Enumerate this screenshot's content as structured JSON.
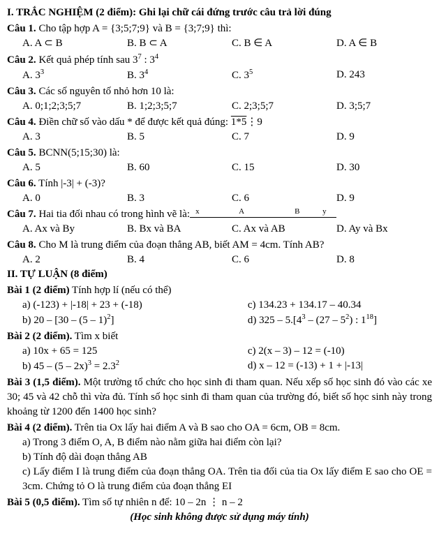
{
  "partI": {
    "title": "I. TRẮC NGHIỆM (2 điểm): Ghi lại chữ cái đứng trước câu trả lời đúng",
    "questions": [
      {
        "label": "Câu 1.",
        "text": " Cho tập hợp A = {3;5;7;9} và B = {3;7;9} thì:",
        "opts": [
          "A. A ⊂ B",
          "B. B ⊂ A",
          "C. B ∈ A",
          "D. A ∈ B"
        ]
      },
      {
        "label": "Câu 2.",
        "text_html": " Kết quả phép tính sau 3<sup>7</sup> : 3<sup>4</sup>",
        "opts_html": [
          "A. 3<sup>3</sup>",
          "B. 3<sup>4</sup>",
          "C. 3<sup>5</sup>",
          "D. 243"
        ]
      },
      {
        "label": "Câu 3.",
        "text": " Các số nguyên tố nhỏ hơn 10 là:",
        "opts": [
          "A. 0;1;2;3;5;7",
          "B. 1;2;3;5;7",
          "C. 2;3;5;7",
          "D. 3;5;7"
        ]
      },
      {
        "label": "Câu 4.",
        "text_html": " Điền chữ số vào dấu * để được kết quả đúng: <span class=\"overline\">1*5</span>⋮9",
        "opts": [
          "A. 3",
          "B. 5",
          "C. 7",
          "D. 9"
        ]
      },
      {
        "label": "Câu 5.",
        "text": " BCNN(5;15;30) là:",
        "opts": [
          "A. 5",
          "B. 60",
          "C. 15",
          "D. 30"
        ]
      },
      {
        "label": "Câu 6.",
        "text": " Tính |-3| + (-3)?",
        "opts": [
          "A. 0",
          "B. 3",
          "C. 6",
          "D. 9"
        ]
      },
      {
        "label": "Câu 7.",
        "text": " Hai tia đối nhau có trong hình vẽ là:",
        "diagram_labels": {
          "x": "x",
          "A": "A",
          "B": "B",
          "y": "y"
        },
        "opts": [
          "A. Ax và By",
          "B. Bx và BA",
          "C. Ax và AB",
          "D. Ay và Bx"
        ]
      },
      {
        "label": "Câu 8.",
        "text": " Cho M là trung điểm của đoạn thẳng AB, biết AM = 4cm. Tính AB?",
        "opts": [
          "A. 2",
          "B. 4",
          "C. 6",
          "D. 8"
        ]
      }
    ]
  },
  "partII": {
    "title": "II. TỰ LUẬN (8 điểm)",
    "b1": {
      "head": "Bài 1 (2 điểm)",
      "text": " Tính hợp lí (nếu có thể)",
      "a": "a)  (-123) + |-18| + 23 + (-18)",
      "c": "c)  134.23 + 134.17 – 40.34",
      "b_html": "b)  20 – [30 – (5 – 1)<sup>2</sup>]",
      "d_html": "d)  325 – 5.[4<sup>3</sup> – (27 – 5<sup>2</sup>) : 1<sup>18</sup>]"
    },
    "b2": {
      "head": "Bài 2 (2 điểm).",
      "text": " Tìm x biết",
      "a": "a)  10x + 65 = 125",
      "c": "c)  2(x – 3) – 12 = (-10)",
      "b_html": "b)  45 – (5 – 2x)<sup>3</sup> = 2.3<sup>2</sup>",
      "d": "d)  x – 12 = (-13) + 1 + |-13|"
    },
    "b3": {
      "head": "Bài 3 (1,5 điểm).",
      "text": " Một trường tổ chức cho học sinh đi tham quan. Nếu xếp số học sinh đó vào các xe 30; 45 và 42 chỗ thì vừa đủ. Tính số học sinh đi tham quan của trường đó, biết số học sinh này trong khoảng từ 1200 đến 1400 học sinh?"
    },
    "b4": {
      "head": "Bài 4 (2 điểm).",
      "text": " Trên tia Ox lấy hai điểm A và B sao cho OA = 6cm, OB = 8cm.",
      "a": "a)  Trong 3 điểm O, A, B điểm nào nằm giữa hai điểm còn lại?",
      "b": "b)  Tính độ dài đoạn thẳng AB",
      "c": "c)  Lấy điểm I là trung điểm của đoạn thẳng OA. Trên tia đối của tia Ox lấy điểm E sao cho OE = 3cm. Chứng tỏ O là trung điểm của đoạn thẳng EI"
    },
    "b5": {
      "head": "Bài 5 (0,5 điểm).",
      "text": " Tìm số tự nhiên n để: 10 – 2n ⋮ n – 2"
    },
    "note": "(Học sinh không được sử dụng máy tính)"
  }
}
